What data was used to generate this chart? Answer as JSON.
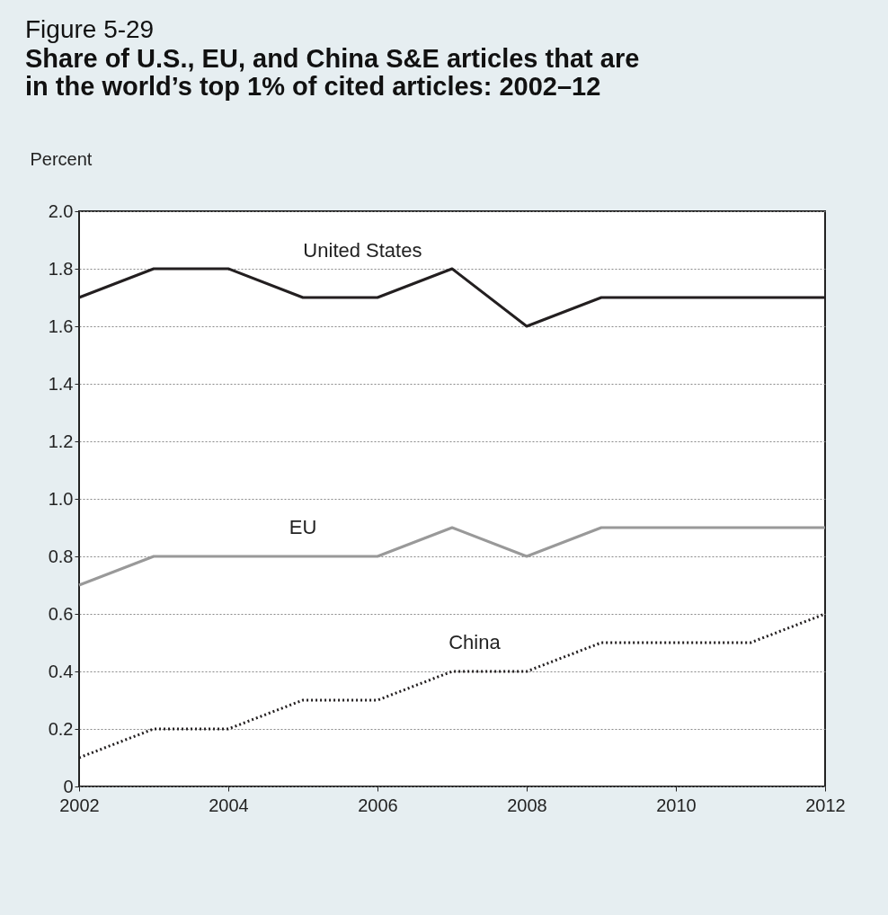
{
  "chart_data": {
    "type": "line",
    "title": "Figure 5-29",
    "subtitle": "Share of U.S., EU, and China S&E articles that are in the world’s top 1% of cited articles: 2002–12",
    "ylabel": "Percent",
    "x": [
      2002,
      2003,
      2004,
      2005,
      2006,
      2007,
      2008,
      2009,
      2010,
      2011,
      2012
    ],
    "series": [
      {
        "name": "United States",
        "color": "#231f20",
        "line_style": "solid",
        "values": [
          1.7,
          1.8,
          1.8,
          1.7,
          1.7,
          1.8,
          1.6,
          1.7,
          1.7,
          1.7,
          1.7
        ]
      },
      {
        "name": "EU",
        "color": "#999999",
        "line_style": "solid",
        "values": [
          0.7,
          0.8,
          0.8,
          0.8,
          0.8,
          0.9,
          0.8,
          0.9,
          0.9,
          0.9,
          0.9
        ]
      },
      {
        "name": "China",
        "color": "#231f20",
        "line_style": "dotted",
        "values": [
          0.1,
          0.2,
          0.2,
          0.3,
          0.3,
          0.4,
          0.4,
          0.5,
          0.5,
          0.5,
          0.6
        ]
      }
    ],
    "xlim": [
      2002,
      2012
    ],
    "xticks": [
      2002,
      2004,
      2006,
      2008,
      2010,
      2012
    ],
    "ylim": [
      0,
      2
    ],
    "yticks": [
      0,
      0.2,
      0.4,
      0.6,
      0.8,
      {
        "value": 1,
        "label": "1.0"
      },
      1.2,
      1.4,
      1.6,
      1.8,
      {
        "value": 2,
        "label": "2.0"
      }
    ],
    "grid": "y",
    "legend": false,
    "marker": "none"
  }
}
